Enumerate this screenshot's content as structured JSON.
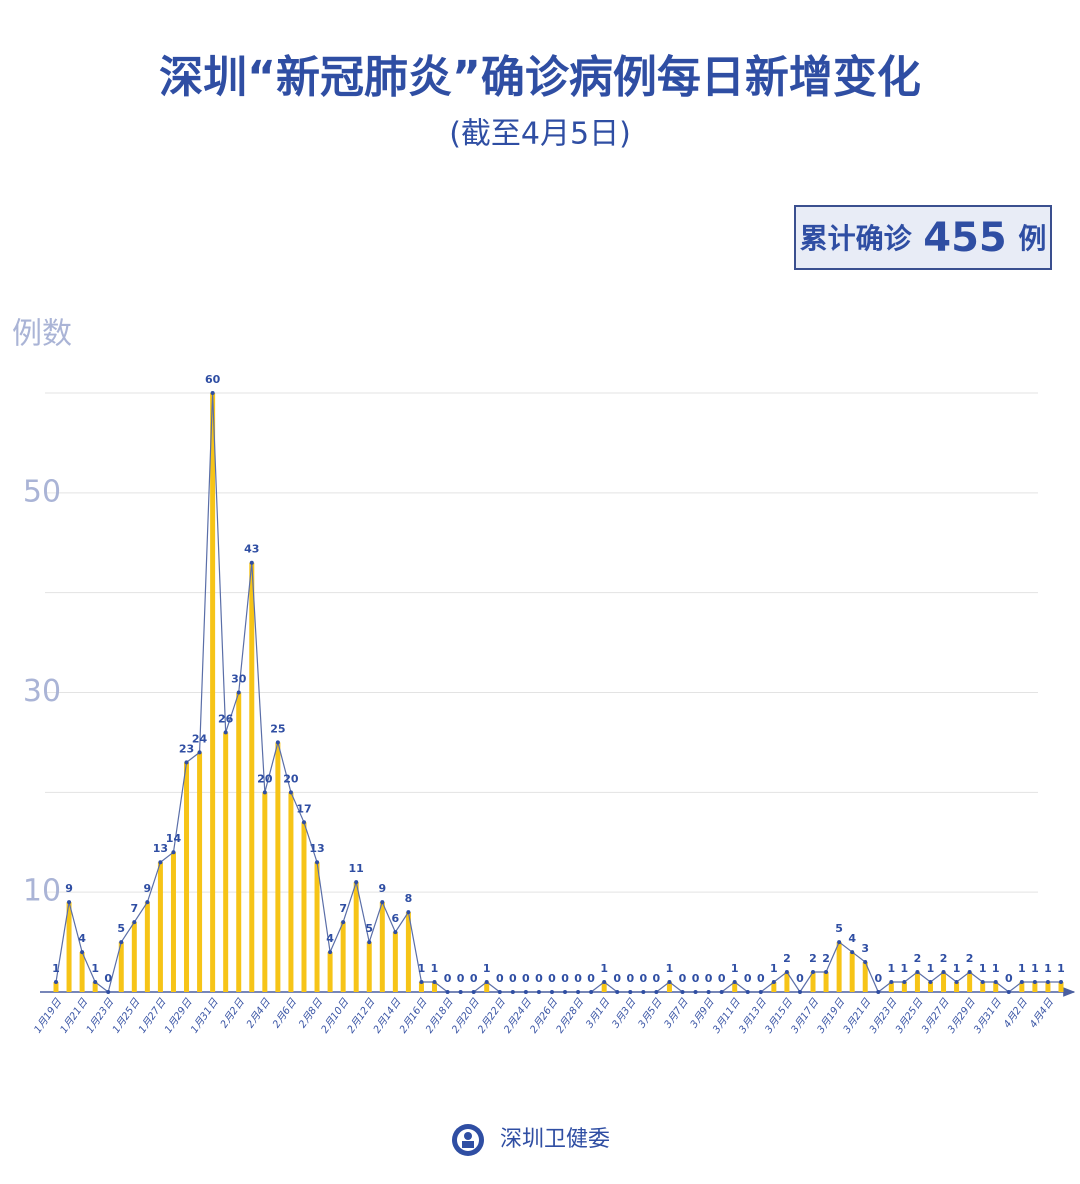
{
  "chart_data": {
    "type": "bar-line",
    "title": "深圳“新冠肺炎”确诊病例每日新增变化",
    "subtitle": "(截至4月5日)",
    "total_label": "累计确诊",
    "total": 455,
    "total_unit": "例",
    "y_label": "例数",
    "source": "深圳卫健委",
    "categories": [
      "1月19日",
      null,
      "1月21日",
      null,
      "1月23日",
      null,
      "1月25日",
      null,
      "1月27日",
      null,
      "1月29日",
      null,
      "1月31日",
      null,
      "2月2日",
      null,
      "2月4日",
      null,
      "2月6日",
      null,
      "2月8日",
      null,
      "2月10日",
      null,
      "2月12日",
      null,
      "2月14日",
      null,
      "2月16日",
      null,
      "2月18日",
      null,
      "2月20日",
      null,
      "2月22日",
      null,
      "2月24日",
      null,
      "2月26日",
      null,
      "2月28日",
      null,
      "3月1日",
      null,
      "3月3日",
      null,
      "3月5日",
      null,
      "3月7日",
      null,
      "3月9日",
      null,
      "3月11日",
      null,
      "3月13日",
      null,
      "3月15日",
      null,
      "3月17日",
      null,
      "3月19日",
      null,
      "3月21日",
      null,
      "3月23日",
      null,
      "3月25日",
      null,
      "3月27日",
      null,
      "3月29日",
      null,
      "3月31日",
      null,
      "4月2日",
      null,
      "4月4日",
      null
    ],
    "values": [
      1,
      9,
      4,
      1,
      0,
      5,
      7,
      9,
      13,
      14,
      23,
      24,
      60,
      26,
      30,
      43,
      20,
      25,
      20,
      17,
      13,
      4,
      7,
      11,
      5,
      9,
      6,
      8,
      1,
      1,
      0,
      0,
      0,
      1,
      0,
      0,
      0,
      0,
      0,
      0,
      0,
      0,
      1,
      0,
      0,
      0,
      0,
      1,
      0,
      0,
      0,
      0,
      1,
      0,
      0,
      1,
      2,
      0,
      2,
      2,
      5,
      4,
      3,
      0,
      1,
      1,
      2,
      1,
      2,
      1,
      2,
      1,
      1,
      0,
      1,
      1,
      1,
      1
    ],
    "bar_color": "#f6c417",
    "line_color": "#5a6ea8",
    "point_color": "#2f4ea3",
    "ylim": [
      0,
      60
    ],
    "yticks": [
      10,
      30,
      50
    ],
    "ygrid": [
      10,
      20,
      30,
      40,
      50,
      60
    ]
  }
}
